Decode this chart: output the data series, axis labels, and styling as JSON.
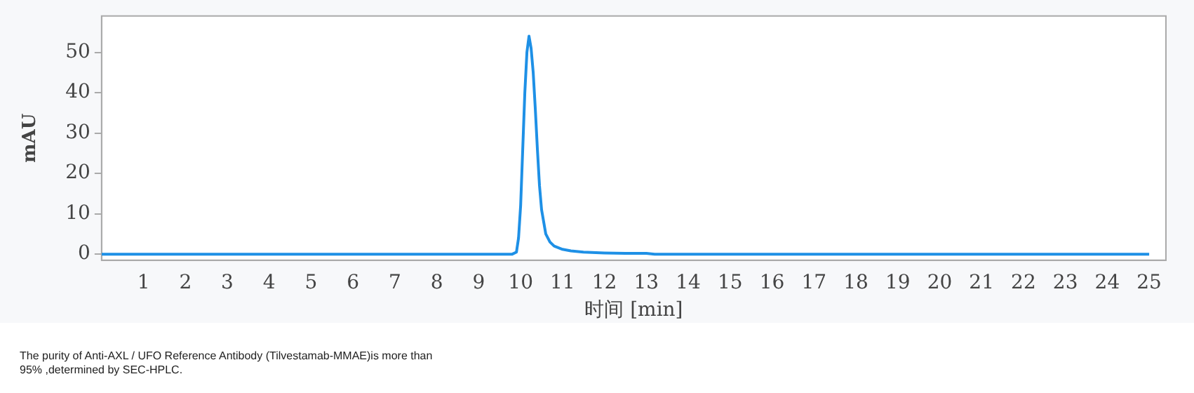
{
  "chart_data": {
    "type": "line",
    "xlabel": "时间 [min]",
    "ylabel": "mAU",
    "x": [
      0,
      9.8,
      9.9,
      9.95,
      10.0,
      10.05,
      10.1,
      10.15,
      10.2,
      10.25,
      10.3,
      10.35,
      10.4,
      10.45,
      10.5,
      10.6,
      10.7,
      10.8,
      11.0,
      11.2,
      11.5,
      12.0,
      12.5,
      13.0,
      13.2,
      25
    ],
    "series": [
      {
        "color": "#1e90e6",
        "values": [
          0,
          0,
          0.5,
          4,
          12,
          26,
          40,
          50,
          54,
          51,
          45,
          36,
          26,
          17,
          11,
          5,
          3,
          2,
          1.2,
          0.8,
          0.5,
          0.3,
          0.2,
          0.2,
          0,
          0
        ]
      }
    ],
    "xlim": [
      0,
      25.4
    ],
    "xticks": [
      1,
      2,
      3,
      4,
      5,
      6,
      7,
      8,
      9,
      10,
      11,
      12,
      13,
      14,
      15,
      16,
      17,
      18,
      19,
      20,
      21,
      22,
      23,
      24,
      25
    ],
    "ylim": [
      -1.5,
      59
    ],
    "yticks": [
      0,
      10,
      20,
      30,
      40,
      50
    ],
    "grid": false,
    "legend": false,
    "marker": "none",
    "line_style": "solid",
    "annotations": [
      "The purity of Anti-AXL / UFO Reference Antibody (Tilvestamab-MMAE)is more than 95% ,determined by SEC-HPLC."
    ]
  }
}
